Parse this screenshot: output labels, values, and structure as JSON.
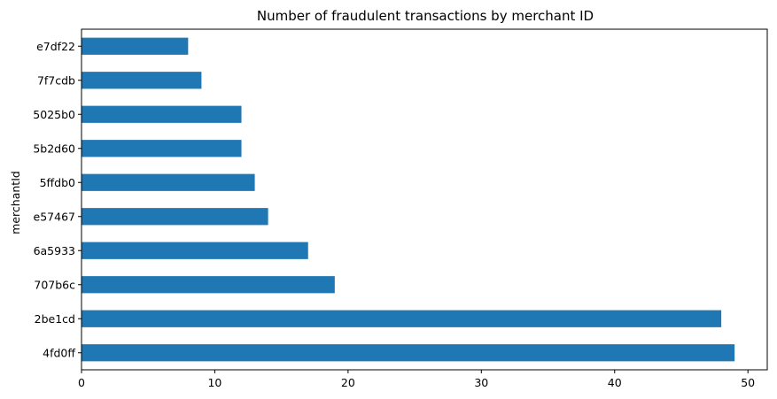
{
  "chart_data": {
    "type": "bar",
    "orientation": "horizontal",
    "title": "Number of fraudulent transactions by merchant ID",
    "xlabel": "",
    "ylabel": "merchantId",
    "categories": [
      "4fd0ff",
      "2be1cd",
      "707b6c",
      "6a5933",
      "e57467",
      "5ffdb0",
      "5b2d60",
      "5025b0",
      "7f7cdb",
      "e7df22"
    ],
    "values": [
      49,
      48,
      19,
      17,
      14,
      13,
      12,
      12,
      9,
      8
    ],
    "xlim": [
      0,
      51.45
    ],
    "xticks": [
      0,
      10,
      20,
      30,
      40,
      50
    ],
    "grid": false,
    "bar_color": "#1f77b4"
  }
}
